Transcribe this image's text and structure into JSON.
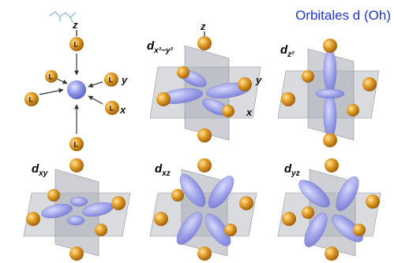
{
  "title": "Orbitales d (Oh)",
  "ligand_label": "L",
  "axes": {
    "x": "x",
    "y": "y",
    "z": "z"
  },
  "orbitals": {
    "dx2y2": {
      "base": "d",
      "sub": "x²−y²"
    },
    "dz2": {
      "base": "d",
      "sub": "z²"
    },
    "dxy": {
      "base": "d",
      "sub": "xy"
    },
    "dxz": {
      "base": "d",
      "sub": "xz"
    },
    "dyz": {
      "base": "d",
      "sub": "yz"
    }
  },
  "colors": {
    "title": "#1f33d6",
    "ligand": "#d9901f",
    "lobe": "#8e93e6",
    "plane": "#b9bdc4"
  }
}
